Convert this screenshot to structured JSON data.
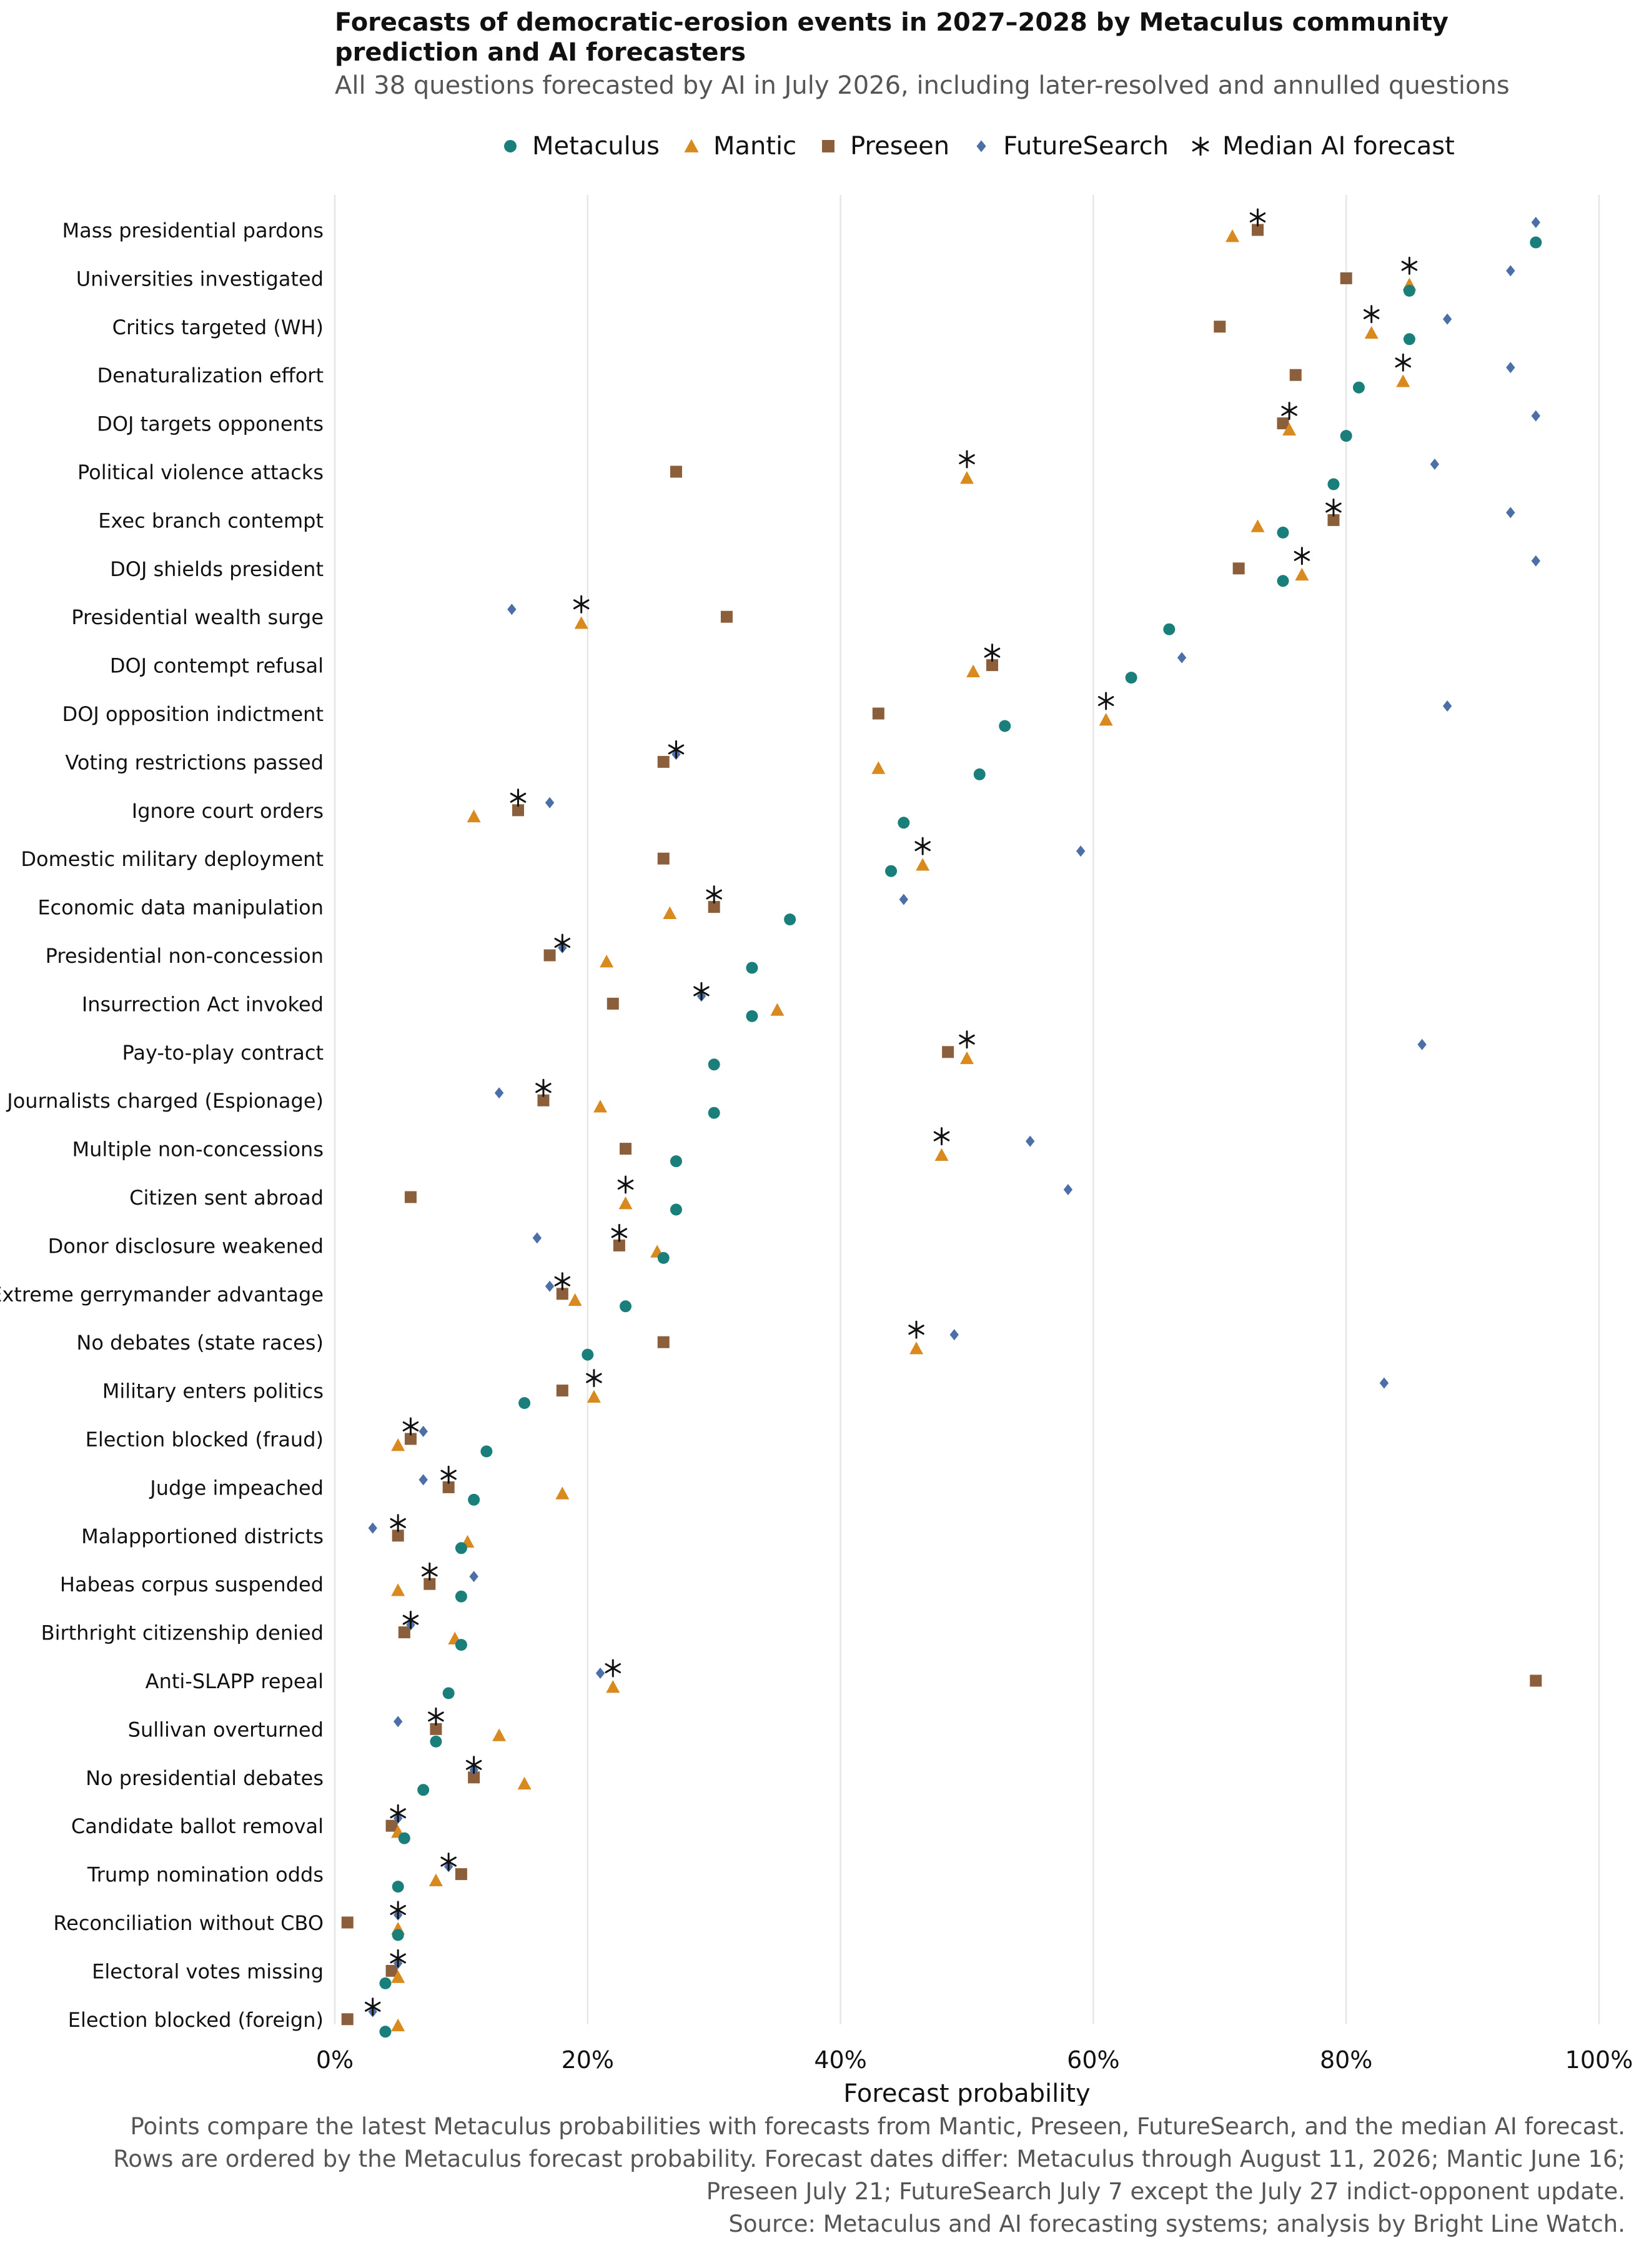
{
  "colors": {
    "metaculus": "#1a7f7a",
    "mantic": "#d98a1e",
    "preseen": "#8b5e3c",
    "futuresearch": "#4c6fa8",
    "median": "#111111",
    "grid": "#e6e6e6"
  },
  "chart_data": {
    "type": "scatter",
    "title": "Forecasts of democratic-erosion events in 2027–2028 by Metaculus community\nprediction and AI forecasters",
    "subtitle": "All 38 questions forecasted by AI in July 2026, including later-resolved and annulled questions",
    "xlabel": "Forecast probability",
    "ylabel": "",
    "xlim": [
      0,
      100
    ],
    "x_ticks": [
      "0%",
      "20%",
      "40%",
      "60%",
      "80%",
      "100%"
    ],
    "grid": "vertical",
    "legend_position": "top",
    "legend": [
      {
        "key": "metaculus",
        "label": "Metaculus",
        "marker": "circle"
      },
      {
        "key": "mantic",
        "label": "Mantic",
        "marker": "triangle"
      },
      {
        "key": "preseen",
        "label": "Preseen",
        "marker": "square"
      },
      {
        "key": "futuresearch",
        "label": "FutureSearch",
        "marker": "diamond"
      },
      {
        "key": "median",
        "label": "Median AI forecast",
        "marker": "asterisk"
      }
    ],
    "rows": [
      {
        "label": "Mass presidential pardons",
        "metaculus": 95,
        "mantic": 71,
        "preseen": 73,
        "futuresearch": 95,
        "median": 73
      },
      {
        "label": "Universities investigated",
        "metaculus": 85,
        "mantic": 85,
        "preseen": 80,
        "futuresearch": 93,
        "median": 85
      },
      {
        "label": "Critics targeted (WH)",
        "metaculus": 85,
        "mantic": 82,
        "preseen": 70,
        "futuresearch": 88,
        "median": 82
      },
      {
        "label": "Denaturalization effort",
        "metaculus": 81,
        "mantic": 84.5,
        "preseen": 76,
        "futuresearch": 93,
        "median": 84.5
      },
      {
        "label": "DOJ targets opponents",
        "metaculus": 80,
        "mantic": 75.5,
        "preseen": 75,
        "futuresearch": 95,
        "median": 75.5
      },
      {
        "label": "Political violence attacks",
        "metaculus": 79,
        "mantic": 50,
        "preseen": 27,
        "futuresearch": 87,
        "median": 50
      },
      {
        "label": "Exec branch contempt",
        "metaculus": 75,
        "mantic": 73,
        "preseen": 79,
        "futuresearch": 93,
        "median": 79
      },
      {
        "label": "DOJ shields president",
        "metaculus": 75,
        "mantic": 76.5,
        "preseen": 71.5,
        "futuresearch": 95,
        "median": 76.5
      },
      {
        "label": "Presidential wealth surge",
        "metaculus": 66,
        "mantic": 19.5,
        "preseen": 31,
        "futuresearch": 14,
        "median": 19.5
      },
      {
        "label": "DOJ contempt refusal",
        "metaculus": 63,
        "mantic": 50.5,
        "preseen": 52,
        "futuresearch": 67,
        "median": 52
      },
      {
        "label": "DOJ opposition indictment",
        "metaculus": 53,
        "mantic": 61,
        "preseen": 43,
        "futuresearch": 88,
        "median": 61
      },
      {
        "label": "Voting restrictions passed",
        "metaculus": 51,
        "mantic": 43,
        "preseen": 26,
        "futuresearch": 27,
        "median": 27
      },
      {
        "label": "Ignore court orders",
        "metaculus": 45,
        "mantic": 11,
        "preseen": 14.5,
        "futuresearch": 17,
        "median": 14.5
      },
      {
        "label": "Domestic military deployment",
        "metaculus": 44,
        "mantic": 46.5,
        "preseen": 26,
        "futuresearch": 59,
        "median": 46.5
      },
      {
        "label": "Economic data manipulation",
        "metaculus": 36,
        "mantic": 26.5,
        "preseen": 30,
        "futuresearch": 45,
        "median": 30
      },
      {
        "label": "Presidential non-concession",
        "metaculus": 33,
        "mantic": 21.5,
        "preseen": 17,
        "futuresearch": 18,
        "median": 18
      },
      {
        "label": "Insurrection Act invoked",
        "metaculus": 33,
        "mantic": 35,
        "preseen": 22,
        "futuresearch": 29,
        "median": 29
      },
      {
        "label": "Pay-to-play contract",
        "metaculus": 30,
        "mantic": 50,
        "preseen": 48.5,
        "futuresearch": 86,
        "median": 50
      },
      {
        "label": "Journalists charged (Espionage)",
        "metaculus": 30,
        "mantic": 21,
        "preseen": 16.5,
        "futuresearch": 13,
        "median": 16.5
      },
      {
        "label": "Multiple non-concessions",
        "metaculus": 27,
        "mantic": 48,
        "preseen": 23,
        "futuresearch": 55,
        "median": 48
      },
      {
        "label": "Citizen sent abroad",
        "metaculus": 27,
        "mantic": 23,
        "preseen": 6,
        "futuresearch": 58,
        "median": 23
      },
      {
        "label": "Donor disclosure weakened",
        "metaculus": 26,
        "mantic": 25.5,
        "preseen": 22.5,
        "futuresearch": 16,
        "median": 22.5
      },
      {
        "label": "Extreme gerrymander advantage",
        "metaculus": 23,
        "mantic": 19,
        "preseen": 18,
        "futuresearch": 17,
        "median": 18
      },
      {
        "label": "No debates (state races)",
        "metaculus": 20,
        "mantic": 46,
        "preseen": 26,
        "futuresearch": 49,
        "median": 46
      },
      {
        "label": "Military enters politics",
        "metaculus": 15,
        "mantic": 20.5,
        "preseen": 18,
        "futuresearch": 83,
        "median": 20.5
      },
      {
        "label": "Election blocked (fraud)",
        "metaculus": 12,
        "mantic": 5,
        "preseen": 6,
        "futuresearch": 7,
        "median": 6
      },
      {
        "label": "Judge impeached",
        "metaculus": 11,
        "mantic": 18,
        "preseen": 9,
        "futuresearch": 7,
        "median": 9
      },
      {
        "label": "Malapportioned districts",
        "metaculus": 10,
        "mantic": 10.5,
        "preseen": 5,
        "futuresearch": 3,
        "median": 5
      },
      {
        "label": "Habeas corpus suspended",
        "metaculus": 10,
        "mantic": 5,
        "preseen": 7.5,
        "futuresearch": 11,
        "median": 7.5
      },
      {
        "label": "Birthright citizenship denied",
        "metaculus": 10,
        "mantic": 9.5,
        "preseen": 5.5,
        "futuresearch": 6,
        "median": 6
      },
      {
        "label": "Anti-SLAPP repeal",
        "metaculus": 9,
        "mantic": 22,
        "preseen": 95,
        "futuresearch": 21,
        "median": 22
      },
      {
        "label": "Sullivan overturned",
        "metaculus": 8,
        "mantic": 13,
        "preseen": 8,
        "futuresearch": 5,
        "median": 8
      },
      {
        "label": "No presidential debates",
        "metaculus": 7,
        "mantic": 15,
        "preseen": 11,
        "futuresearch": 11,
        "median": 11
      },
      {
        "label": "Candidate ballot removal",
        "metaculus": 5.5,
        "mantic": 5,
        "preseen": 4.5,
        "futuresearch": 5,
        "median": 5
      },
      {
        "label": "Trump nomination odds",
        "metaculus": 5,
        "mantic": 8,
        "preseen": 10,
        "futuresearch": 9,
        "median": 9
      },
      {
        "label": "Reconciliation without CBO",
        "metaculus": 5,
        "mantic": 5,
        "preseen": 1,
        "futuresearch": 5,
        "median": 5
      },
      {
        "label": "Electoral votes missing",
        "metaculus": 4,
        "mantic": 5,
        "preseen": 4.5,
        "futuresearch": 5,
        "median": 5
      },
      {
        "label": "Election blocked (foreign)",
        "metaculus": 4,
        "mantic": 5,
        "preseen": 1,
        "futuresearch": 3,
        "median": 3
      }
    ]
  },
  "caption": "Points compare the latest Metaculus probabilities with forecasts from Mantic, Preseen, FutureSearch, and the median AI forecast.\nRows are ordered by the Metaculus forecast probability. Forecast dates differ: Metaculus through August 11, 2026; Mantic June 16;\nPreseen July 21; FutureSearch July 7 except the July 27 indict-opponent update.\nSource: Metaculus and AI forecasting systems; analysis by Bright Line Watch."
}
